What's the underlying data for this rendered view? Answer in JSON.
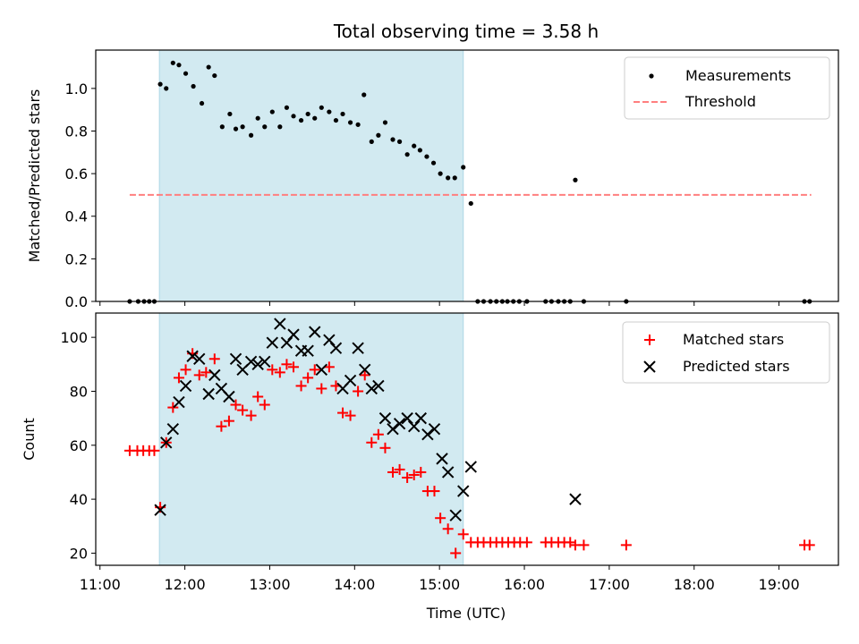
{
  "chart_data": {
    "type": "scatter",
    "title": "Total observing time = 3.58 h",
    "xlabel": "Time (UTC)",
    "xlim": [
      10.95,
      19.7
    ],
    "x_ticks": [
      11,
      12,
      13,
      14,
      15,
      16,
      17,
      18,
      19
    ],
    "x_tick_labels": [
      "11:00",
      "12:00",
      "13:00",
      "14:00",
      "15:00",
      "16:00",
      "17:00",
      "18:00",
      "19:00"
    ],
    "observing_window": {
      "start": 11.7,
      "end": 15.28,
      "color": "#add8e6"
    },
    "panels": [
      {
        "ylabel": "Matched/Predicted stars",
        "ylim": [
          0,
          1.18
        ],
        "y_ticks": [
          0,
          0.2,
          0.4,
          0.6,
          0.8,
          1.0
        ],
        "y_tick_labels": [
          "0.0",
          "0.2",
          "0.4",
          "0.6",
          "0.8",
          "1.0"
        ],
        "legend": {
          "position": "top-right",
          "entries": [
            "Measurements",
            "Threshold"
          ]
        },
        "threshold": {
          "value": 0.5,
          "x_range": [
            11.35,
            19.38
          ],
          "color": "#ff7f7f"
        },
        "series": [
          {
            "name": "Measurements",
            "marker": "dot",
            "color": "#000000",
            "points": [
              [
                11.35,
                0
              ],
              [
                11.45,
                0
              ],
              [
                11.52,
                0
              ],
              [
                11.58,
                0
              ],
              [
                11.64,
                0
              ],
              [
                11.71,
                1.02
              ],
              [
                11.78,
                1.0
              ],
              [
                11.86,
                1.12
              ],
              [
                11.93,
                1.11
              ],
              [
                12.01,
                1.07
              ],
              [
                12.1,
                1.01
              ],
              [
                12.2,
                0.93
              ],
              [
                12.28,
                1.1
              ],
              [
                12.35,
                1.06
              ],
              [
                12.44,
                0.82
              ],
              [
                12.53,
                0.88
              ],
              [
                12.6,
                0.81
              ],
              [
                12.68,
                0.82
              ],
              [
                12.78,
                0.78
              ],
              [
                12.86,
                0.86
              ],
              [
                12.94,
                0.82
              ],
              [
                13.03,
                0.89
              ],
              [
                13.12,
                0.82
              ],
              [
                13.2,
                0.91
              ],
              [
                13.28,
                0.87
              ],
              [
                13.37,
                0.85
              ],
              [
                13.45,
                0.88
              ],
              [
                13.53,
                0.86
              ],
              [
                13.61,
                0.91
              ],
              [
                13.7,
                0.89
              ],
              [
                13.78,
                0.85
              ],
              [
                13.86,
                0.88
              ],
              [
                13.95,
                0.84
              ],
              [
                14.04,
                0.83
              ],
              [
                14.11,
                0.97
              ],
              [
                14.2,
                0.75
              ],
              [
                14.28,
                0.78
              ],
              [
                14.36,
                0.84
              ],
              [
                14.45,
                0.76
              ],
              [
                14.53,
                0.75
              ],
              [
                14.62,
                0.69
              ],
              [
                14.7,
                0.73
              ],
              [
                14.77,
                0.71
              ],
              [
                14.85,
                0.68
              ],
              [
                14.93,
                0.65
              ],
              [
                15.01,
                0.6
              ],
              [
                15.1,
                0.58
              ],
              [
                15.18,
                0.58
              ],
              [
                15.28,
                0.63
              ],
              [
                15.37,
                0.46
              ],
              [
                15.45,
                0
              ],
              [
                15.52,
                0
              ],
              [
                15.6,
                0
              ],
              [
                15.67,
                0
              ],
              [
                15.74,
                0
              ],
              [
                15.8,
                0
              ],
              [
                15.87,
                0
              ],
              [
                15.94,
                0
              ],
              [
                16.03,
                0
              ],
              [
                16.25,
                0
              ],
              [
                16.32,
                0
              ],
              [
                16.4,
                0
              ],
              [
                16.47,
                0
              ],
              [
                16.54,
                0
              ],
              [
                16.6,
                0.57
              ],
              [
                16.7,
                0
              ],
              [
                17.2,
                0
              ],
              [
                19.3,
                0
              ],
              [
                19.36,
                0
              ]
            ]
          }
        ]
      },
      {
        "ylabel": "Count",
        "ylim": [
          15.5,
          109
        ],
        "y_ticks": [
          20,
          40,
          60,
          80,
          100
        ],
        "y_tick_labels": [
          "20",
          "40",
          "60",
          "80",
          "100"
        ],
        "legend": {
          "position": "top-right",
          "entries": [
            "Matched stars",
            "Predicted stars"
          ]
        },
        "series": [
          {
            "name": "Matched stars",
            "marker": "plus",
            "color": "#ff0000",
            "points": [
              [
                11.35,
                58
              ],
              [
                11.44,
                58
              ],
              [
                11.51,
                58
              ],
              [
                11.58,
                58
              ],
              [
                11.64,
                58
              ],
              [
                11.71,
                37
              ],
              [
                11.78,
                61
              ],
              [
                11.86,
                74
              ],
              [
                11.93,
                85
              ],
              [
                12.01,
                88
              ],
              [
                12.09,
                94
              ],
              [
                12.17,
                86
              ],
              [
                12.25,
                87
              ],
              [
                12.35,
                92
              ],
              [
                12.43,
                67
              ],
              [
                12.52,
                69
              ],
              [
                12.6,
                75
              ],
              [
                12.68,
                73
              ],
              [
                12.78,
                71
              ],
              [
                12.86,
                78
              ],
              [
                12.94,
                75
              ],
              [
                13.03,
                88
              ],
              [
                13.12,
                87
              ],
              [
                13.2,
                90
              ],
              [
                13.28,
                89
              ],
              [
                13.37,
                82
              ],
              [
                13.45,
                85
              ],
              [
                13.53,
                88
              ],
              [
                13.61,
                81
              ],
              [
                13.7,
                89
              ],
              [
                13.78,
                82
              ],
              [
                13.86,
                72
              ],
              [
                13.95,
                71
              ],
              [
                14.04,
                80
              ],
              [
                14.12,
                86
              ],
              [
                14.2,
                61
              ],
              [
                14.28,
                64
              ],
              [
                14.36,
                59
              ],
              [
                14.45,
                50
              ],
              [
                14.53,
                51
              ],
              [
                14.62,
                48
              ],
              [
                14.7,
                49
              ],
              [
                14.78,
                50
              ],
              [
                14.86,
                43
              ],
              [
                14.94,
                43
              ],
              [
                15.01,
                33
              ],
              [
                15.1,
                29
              ],
              [
                15.19,
                20
              ],
              [
                15.28,
                27
              ],
              [
                15.37,
                24
              ],
              [
                15.45,
                24
              ],
              [
                15.52,
                24
              ],
              [
                15.6,
                24
              ],
              [
                15.67,
                24
              ],
              [
                15.74,
                24
              ],
              [
                15.81,
                24
              ],
              [
                15.88,
                24
              ],
              [
                15.95,
                24
              ],
              [
                16.03,
                24
              ],
              [
                16.25,
                24
              ],
              [
                16.32,
                24
              ],
              [
                16.4,
                24
              ],
              [
                16.47,
                24
              ],
              [
                16.54,
                24
              ],
              [
                16.6,
                23
              ],
              [
                16.7,
                23
              ],
              [
                17.2,
                23
              ],
              [
                19.3,
                23
              ],
              [
                19.36,
                23
              ]
            ]
          },
          {
            "name": "Predicted stars",
            "marker": "cross",
            "color": "#000000",
            "points": [
              [
                11.71,
                36
              ],
              [
                11.78,
                61
              ],
              [
                11.86,
                66
              ],
              [
                11.93,
                76
              ],
              [
                12.01,
                82
              ],
              [
                12.09,
                93
              ],
              [
                12.17,
                92
              ],
              [
                12.28,
                79
              ],
              [
                12.35,
                86
              ],
              [
                12.43,
                81
              ],
              [
                12.52,
                78
              ],
              [
                12.6,
                92
              ],
              [
                12.68,
                88
              ],
              [
                12.78,
                91
              ],
              [
                12.86,
                90
              ],
              [
                12.94,
                91
              ],
              [
                13.03,
                98
              ],
              [
                13.12,
                105
              ],
              [
                13.2,
                98
              ],
              [
                13.28,
                101
              ],
              [
                13.37,
                95
              ],
              [
                13.45,
                95
              ],
              [
                13.53,
                102
              ],
              [
                13.61,
                88
              ],
              [
                13.7,
                99
              ],
              [
                13.78,
                96
              ],
              [
                13.86,
                81
              ],
              [
                13.95,
                84
              ],
              [
                14.04,
                96
              ],
              [
                14.12,
                88
              ],
              [
                14.2,
                81
              ],
              [
                14.28,
                82
              ],
              [
                14.36,
                70
              ],
              [
                14.45,
                66
              ],
              [
                14.53,
                68
              ],
              [
                14.62,
                70
              ],
              [
                14.7,
                67
              ],
              [
                14.78,
                70
              ],
              [
                14.86,
                64
              ],
              [
                14.94,
                66
              ],
              [
                15.03,
                55
              ],
              [
                15.1,
                50
              ],
              [
                15.19,
                34
              ],
              [
                15.28,
                43
              ],
              [
                15.37,
                52
              ],
              [
                16.6,
                40
              ]
            ]
          }
        ]
      }
    ]
  }
}
